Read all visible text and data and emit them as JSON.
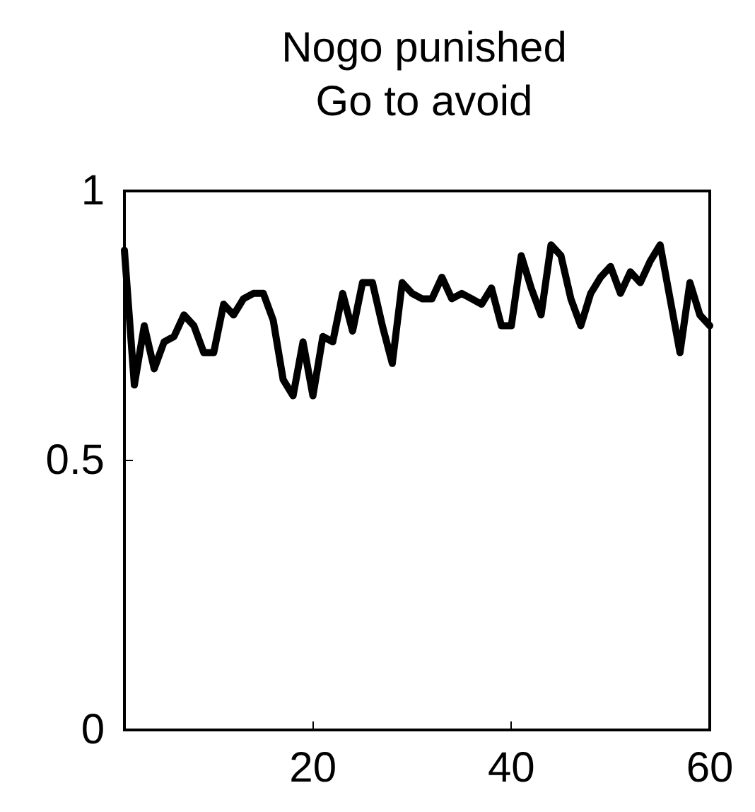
{
  "chart_data": {
    "type": "line",
    "title": "Nogo punished\nGo to avoid",
    "x": [
      1,
      2,
      3,
      4,
      5,
      6,
      7,
      8,
      9,
      10,
      11,
      12,
      13,
      14,
      15,
      16,
      17,
      18,
      19,
      20,
      21,
      22,
      23,
      24,
      25,
      26,
      27,
      28,
      29,
      30,
      31,
      32,
      33,
      34,
      35,
      36,
      37,
      38,
      39,
      40,
      41,
      42,
      43,
      44,
      45,
      46,
      47,
      48,
      49,
      50,
      51,
      52,
      53,
      54,
      55,
      56,
      57,
      58,
      59,
      60
    ],
    "series": [
      {
        "color": "#000000",
        "values": [
          0.89,
          0.64,
          0.75,
          0.67,
          0.72,
          0.73,
          0.77,
          0.75,
          0.7,
          0.7,
          0.79,
          0.77,
          0.8,
          0.81,
          0.81,
          0.76,
          0.65,
          0.62,
          0.72,
          0.62,
          0.73,
          0.72,
          0.81,
          0.74,
          0.83,
          0.83,
          0.75,
          0.68,
          0.83,
          0.81,
          0.8,
          0.8,
          0.84,
          0.8,
          0.81,
          0.8,
          0.79,
          0.82,
          0.75,
          0.75,
          0.88,
          0.82,
          0.77,
          0.9,
          0.88,
          0.8,
          0.75,
          0.81,
          0.84,
          0.86,
          0.81,
          0.85,
          0.83,
          0.87,
          0.9,
          0.8,
          0.7,
          0.83,
          0.77,
          0.75
        ]
      }
    ],
    "xlim": [
      1,
      60
    ],
    "xticks": [
      20,
      40,
      60
    ],
    "ylim": [
      0,
      1
    ],
    "yticks": [
      0,
      0.5,
      1
    ],
    "grid": false,
    "marker": "none",
    "line_style": "solid"
  }
}
